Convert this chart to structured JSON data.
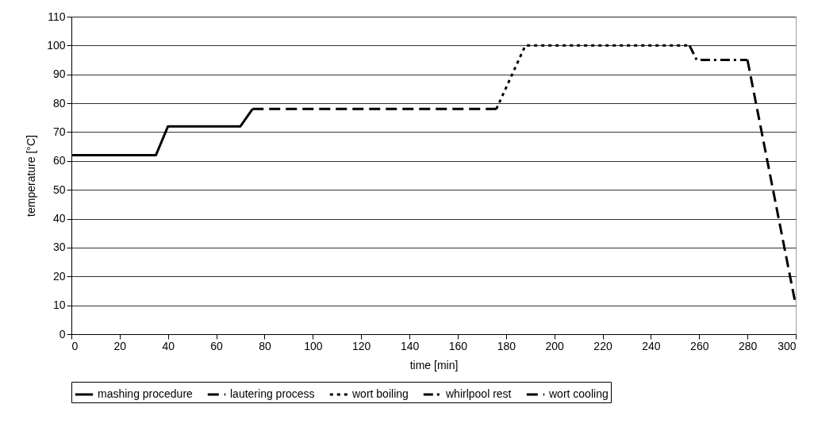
{
  "chart_data": {
    "type": "line",
    "xlabel": "time [min]",
    "ylabel": "temperature [°C]",
    "xlim": [
      0,
      300
    ],
    "xticks": [
      0,
      20,
      40,
      60,
      80,
      100,
      120,
      140,
      160,
      180,
      200,
      220,
      240,
      260,
      280,
      300
    ],
    "ylim": [
      0,
      110
    ],
    "yticks": [
      0,
      10,
      20,
      30,
      40,
      50,
      60,
      70,
      80,
      90,
      100,
      110
    ],
    "grid": "y",
    "legend": "bottom",
    "marker": "none",
    "series": [
      {
        "name": "mashing procedure",
        "color": "#000000",
        "line_style": "solid",
        "x": [
          0,
          35,
          40,
          70,
          75
        ],
        "values": [
          62,
          62,
          72,
          72,
          78
        ]
      },
      {
        "name": "lautering process",
        "color": "#000000",
        "line_style": "dashed",
        "x": [
          75,
          176
        ],
        "values": [
          78,
          78
        ]
      },
      {
        "name": "wort boiling",
        "color": "#000000",
        "line_style": "dotted",
        "x": [
          176,
          188,
          256
        ],
        "values": [
          78,
          100,
          100
        ]
      },
      {
        "name": "whirlpool rest",
        "color": "#000000",
        "line_style": "dashdot",
        "x": [
          256,
          259,
          280
        ],
        "values": [
          100,
          95,
          95
        ]
      },
      {
        "name": "wort cooling",
        "color": "#000000",
        "line_style": "dashed",
        "x": [
          280,
          300
        ],
        "values": [
          95,
          10
        ]
      }
    ]
  }
}
